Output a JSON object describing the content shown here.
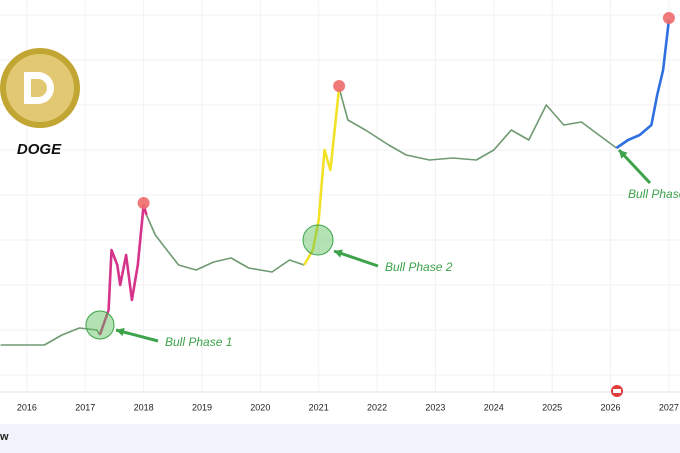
{
  "chart_data": {
    "type": "line",
    "title": "DOGE",
    "x": [
      2015.55,
      2016,
      2016.3,
      2016.6,
      2016.9,
      2017.2,
      2017.25,
      2017.4,
      2017.45,
      2017.55,
      2017.6,
      2017.7,
      2017.8,
      2017.9,
      2018,
      2018.05,
      2018.2,
      2018.4,
      2018.6,
      2018.9,
      2019.2,
      2019.5,
      2019.8,
      2020.2,
      2020.5,
      2020.75,
      2020.9,
      2021,
      2021.1,
      2021.2,
      2021.35,
      2021.5,
      2021.8,
      2022.2,
      2022.5,
      2022.9,
      2023.3,
      2023.7,
      2024,
      2024.3,
      2024.6,
      2024.9,
      2025.2,
      2025.5,
      2025.8,
      2026.1,
      2026.3,
      2026.5,
      2026.7,
      2026.8,
      2026.9,
      2027
    ],
    "series": [
      {
        "color": "#6f9a72",
        "values": [
          45,
          45,
          45,
          55,
          62,
          60,
          55,
          null,
          null,
          null,
          null,
          null,
          null,
          null,
          null,
          175,
          155,
          140,
          125,
          120,
          128,
          132,
          122,
          118,
          130,
          125,
          null,
          null,
          null,
          null,
          302,
          270,
          260,
          245,
          235,
          230,
          232,
          230,
          240,
          260,
          250,
          285,
          265,
          268,
          255,
          242,
          null,
          null,
          null,
          null,
          null,
          null
        ]
      },
      {
        "color": "#d6338a",
        "values": [
          null,
          null,
          null,
          null,
          null,
          null,
          55,
          80,
          140,
          125,
          105,
          135,
          90,
          125,
          185,
          175,
          null,
          null,
          null,
          null,
          null,
          null,
          null,
          null,
          null,
          null,
          null,
          null,
          null,
          null,
          null,
          null,
          null,
          null,
          null,
          null,
          null,
          null,
          null,
          null,
          null,
          null,
          null,
          null,
          null,
          null,
          null,
          null,
          null,
          null,
          null,
          null
        ]
      },
      {
        "color": "#f2e227",
        "values": [
          null,
          null,
          null,
          null,
          null,
          null,
          null,
          null,
          null,
          null,
          null,
          null,
          null,
          null,
          null,
          null,
          null,
          null,
          null,
          null,
          null,
          null,
          null,
          null,
          null,
          125,
          140,
          170,
          240,
          220,
          302,
          null,
          null,
          null,
          null,
          null,
          null,
          null,
          null,
          null,
          null,
          null,
          null,
          null,
          null,
          null,
          null,
          null,
          null,
          null,
          null,
          null
        ]
      },
      {
        "color": "#2f6fe0",
        "values": [
          null,
          null,
          null,
          null,
          null,
          null,
          null,
          null,
          null,
          null,
          null,
          null,
          null,
          null,
          null,
          null,
          null,
          null,
          null,
          null,
          null,
          null,
          null,
          null,
          null,
          null,
          null,
          null,
          null,
          null,
          null,
          null,
          null,
          null,
          null,
          null,
          null,
          null,
          null,
          null,
          null,
          null,
          null,
          null,
          null,
          242,
          250,
          255,
          265,
          295,
          320,
          370
        ]
      }
    ],
    "xlim": [
      2015.54,
      2027.19
    ],
    "ylim": [
      0,
      390
    ],
    "xticks": [
      2016,
      2017,
      2018,
      2019,
      2020,
      2021,
      2022,
      2023,
      2024,
      2025,
      2026,
      2027
    ],
    "grid": true,
    "annotations": [
      "Bull Phase 1",
      "Bull Phase 2",
      "Bull Phase"
    ],
    "footer": "w"
  }
}
